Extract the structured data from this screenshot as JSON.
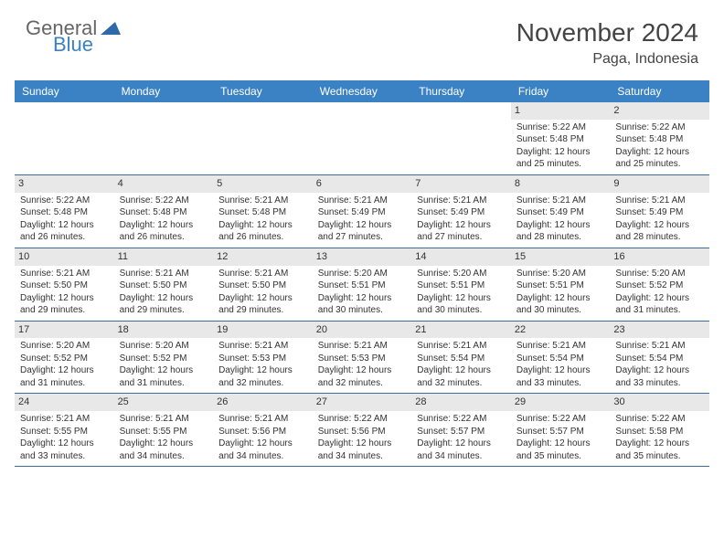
{
  "brand": {
    "top": "General",
    "bottom": "Blue"
  },
  "title": "November 2024",
  "location": "Paga, Indonesia",
  "colors": {
    "header_bg": "#3b82c4",
    "header_text": "#ffffff",
    "daynum_bg": "#e8e8e8",
    "border": "#3b6ea0",
    "text": "#333333",
    "brand_gray": "#666666",
    "brand_blue": "#3b82c4"
  },
  "day_names": [
    "Sunday",
    "Monday",
    "Tuesday",
    "Wednesday",
    "Thursday",
    "Friday",
    "Saturday"
  ],
  "weeks": [
    [
      {
        "n": "",
        "sr": "",
        "ss": "",
        "dl1": "",
        "dl2": ""
      },
      {
        "n": "",
        "sr": "",
        "ss": "",
        "dl1": "",
        "dl2": ""
      },
      {
        "n": "",
        "sr": "",
        "ss": "",
        "dl1": "",
        "dl2": ""
      },
      {
        "n": "",
        "sr": "",
        "ss": "",
        "dl1": "",
        "dl2": ""
      },
      {
        "n": "",
        "sr": "",
        "ss": "",
        "dl1": "",
        "dl2": ""
      },
      {
        "n": "1",
        "sr": "Sunrise: 5:22 AM",
        "ss": "Sunset: 5:48 PM",
        "dl1": "Daylight: 12 hours",
        "dl2": "and 25 minutes."
      },
      {
        "n": "2",
        "sr": "Sunrise: 5:22 AM",
        "ss": "Sunset: 5:48 PM",
        "dl1": "Daylight: 12 hours",
        "dl2": "and 25 minutes."
      }
    ],
    [
      {
        "n": "3",
        "sr": "Sunrise: 5:22 AM",
        "ss": "Sunset: 5:48 PM",
        "dl1": "Daylight: 12 hours",
        "dl2": "and 26 minutes."
      },
      {
        "n": "4",
        "sr": "Sunrise: 5:22 AM",
        "ss": "Sunset: 5:48 PM",
        "dl1": "Daylight: 12 hours",
        "dl2": "and 26 minutes."
      },
      {
        "n": "5",
        "sr": "Sunrise: 5:21 AM",
        "ss": "Sunset: 5:48 PM",
        "dl1": "Daylight: 12 hours",
        "dl2": "and 26 minutes."
      },
      {
        "n": "6",
        "sr": "Sunrise: 5:21 AM",
        "ss": "Sunset: 5:49 PM",
        "dl1": "Daylight: 12 hours",
        "dl2": "and 27 minutes."
      },
      {
        "n": "7",
        "sr": "Sunrise: 5:21 AM",
        "ss": "Sunset: 5:49 PM",
        "dl1": "Daylight: 12 hours",
        "dl2": "and 27 minutes."
      },
      {
        "n": "8",
        "sr": "Sunrise: 5:21 AM",
        "ss": "Sunset: 5:49 PM",
        "dl1": "Daylight: 12 hours",
        "dl2": "and 28 minutes."
      },
      {
        "n": "9",
        "sr": "Sunrise: 5:21 AM",
        "ss": "Sunset: 5:49 PM",
        "dl1": "Daylight: 12 hours",
        "dl2": "and 28 minutes."
      }
    ],
    [
      {
        "n": "10",
        "sr": "Sunrise: 5:21 AM",
        "ss": "Sunset: 5:50 PM",
        "dl1": "Daylight: 12 hours",
        "dl2": "and 29 minutes."
      },
      {
        "n": "11",
        "sr": "Sunrise: 5:21 AM",
        "ss": "Sunset: 5:50 PM",
        "dl1": "Daylight: 12 hours",
        "dl2": "and 29 minutes."
      },
      {
        "n": "12",
        "sr": "Sunrise: 5:21 AM",
        "ss": "Sunset: 5:50 PM",
        "dl1": "Daylight: 12 hours",
        "dl2": "and 29 minutes."
      },
      {
        "n": "13",
        "sr": "Sunrise: 5:20 AM",
        "ss": "Sunset: 5:51 PM",
        "dl1": "Daylight: 12 hours",
        "dl2": "and 30 minutes."
      },
      {
        "n": "14",
        "sr": "Sunrise: 5:20 AM",
        "ss": "Sunset: 5:51 PM",
        "dl1": "Daylight: 12 hours",
        "dl2": "and 30 minutes."
      },
      {
        "n": "15",
        "sr": "Sunrise: 5:20 AM",
        "ss": "Sunset: 5:51 PM",
        "dl1": "Daylight: 12 hours",
        "dl2": "and 30 minutes."
      },
      {
        "n": "16",
        "sr": "Sunrise: 5:20 AM",
        "ss": "Sunset: 5:52 PM",
        "dl1": "Daylight: 12 hours",
        "dl2": "and 31 minutes."
      }
    ],
    [
      {
        "n": "17",
        "sr": "Sunrise: 5:20 AM",
        "ss": "Sunset: 5:52 PM",
        "dl1": "Daylight: 12 hours",
        "dl2": "and 31 minutes."
      },
      {
        "n": "18",
        "sr": "Sunrise: 5:20 AM",
        "ss": "Sunset: 5:52 PM",
        "dl1": "Daylight: 12 hours",
        "dl2": "and 31 minutes."
      },
      {
        "n": "19",
        "sr": "Sunrise: 5:21 AM",
        "ss": "Sunset: 5:53 PM",
        "dl1": "Daylight: 12 hours",
        "dl2": "and 32 minutes."
      },
      {
        "n": "20",
        "sr": "Sunrise: 5:21 AM",
        "ss": "Sunset: 5:53 PM",
        "dl1": "Daylight: 12 hours",
        "dl2": "and 32 minutes."
      },
      {
        "n": "21",
        "sr": "Sunrise: 5:21 AM",
        "ss": "Sunset: 5:54 PM",
        "dl1": "Daylight: 12 hours",
        "dl2": "and 32 minutes."
      },
      {
        "n": "22",
        "sr": "Sunrise: 5:21 AM",
        "ss": "Sunset: 5:54 PM",
        "dl1": "Daylight: 12 hours",
        "dl2": "and 33 minutes."
      },
      {
        "n": "23",
        "sr": "Sunrise: 5:21 AM",
        "ss": "Sunset: 5:54 PM",
        "dl1": "Daylight: 12 hours",
        "dl2": "and 33 minutes."
      }
    ],
    [
      {
        "n": "24",
        "sr": "Sunrise: 5:21 AM",
        "ss": "Sunset: 5:55 PM",
        "dl1": "Daylight: 12 hours",
        "dl2": "and 33 minutes."
      },
      {
        "n": "25",
        "sr": "Sunrise: 5:21 AM",
        "ss": "Sunset: 5:55 PM",
        "dl1": "Daylight: 12 hours",
        "dl2": "and 34 minutes."
      },
      {
        "n": "26",
        "sr": "Sunrise: 5:21 AM",
        "ss": "Sunset: 5:56 PM",
        "dl1": "Daylight: 12 hours",
        "dl2": "and 34 minutes."
      },
      {
        "n": "27",
        "sr": "Sunrise: 5:22 AM",
        "ss": "Sunset: 5:56 PM",
        "dl1": "Daylight: 12 hours",
        "dl2": "and 34 minutes."
      },
      {
        "n": "28",
        "sr": "Sunrise: 5:22 AM",
        "ss": "Sunset: 5:57 PM",
        "dl1": "Daylight: 12 hours",
        "dl2": "and 34 minutes."
      },
      {
        "n": "29",
        "sr": "Sunrise: 5:22 AM",
        "ss": "Sunset: 5:57 PM",
        "dl1": "Daylight: 12 hours",
        "dl2": "and 35 minutes."
      },
      {
        "n": "30",
        "sr": "Sunrise: 5:22 AM",
        "ss": "Sunset: 5:58 PM",
        "dl1": "Daylight: 12 hours",
        "dl2": "and 35 minutes."
      }
    ]
  ]
}
